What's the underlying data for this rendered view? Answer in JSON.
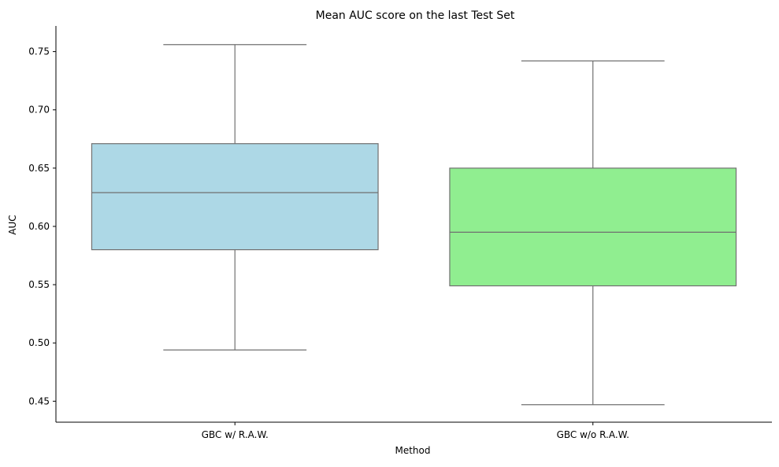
{
  "chart_data": {
    "type": "box",
    "title": "Mean AUC score on the last Test Set",
    "xlabel": "Method",
    "ylabel": "AUC",
    "ylim": [
      0.432,
      0.772
    ],
    "yticks": [
      "0.45",
      "0.50",
      "0.55",
      "0.60",
      "0.65",
      "0.70",
      "0.75"
    ],
    "grid": false,
    "legend": "none",
    "categories": [
      "GBC w/ R.A.W.",
      "GBC w/o R.A.W."
    ],
    "series": [
      {
        "color": "#add8e6",
        "whisker_low": 0.494,
        "q1": 0.58,
        "median": 0.629,
        "q3": 0.671,
        "whisker_high": 0.756
      },
      {
        "color": "#90ee90",
        "whisker_low": 0.447,
        "q1": 0.549,
        "median": 0.595,
        "q3": 0.65,
        "whisker_high": 0.742
      }
    ],
    "line_color": "#707070"
  }
}
